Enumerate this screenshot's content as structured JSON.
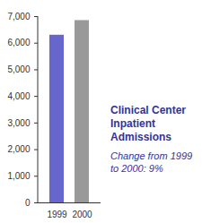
{
  "chart_data": {
    "type": "bar",
    "title": "Clinical Center Inpatient Admissions",
    "subtitle": "Change from 1999 to 2000: 9%",
    "categories": [
      "1999",
      "2000"
    ],
    "values": [
      6300,
      6850
    ],
    "colors": [
      "#6666cc",
      "#999999"
    ],
    "ylim": [
      0,
      7000
    ],
    "yticks": [
      0,
      {
        "value": 1000,
        "label": "1,000"
      },
      {
        "value": 2000,
        "label": "2,000"
      },
      {
        "value": 3000,
        "label": "3,000"
      },
      {
        "value": 4000,
        "label": "4,000"
      },
      {
        "value": 5000,
        "label": "5,000"
      },
      {
        "value": 6000,
        "label": "6,000"
      },
      {
        "value": 7000,
        "label": "7,000"
      }
    ],
    "grid": false
  }
}
